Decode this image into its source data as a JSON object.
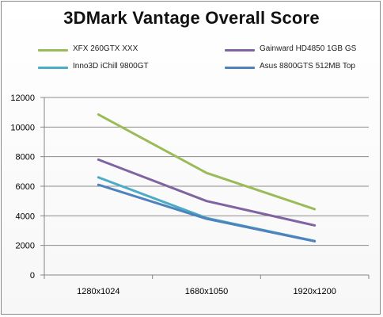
{
  "chart_data": {
    "type": "line",
    "title": "3DMark Vantage Overall Score",
    "categories": [
      "1280x1024",
      "1680x1050",
      "1920x1200"
    ],
    "ylim": [
      0,
      12000
    ],
    "yticks": [
      0,
      2000,
      4000,
      6000,
      8000,
      10000,
      12000
    ],
    "grid": true,
    "legend_position": "top",
    "series": [
      {
        "name": "XFX 260GTX XXX",
        "color": "#9bbb59",
        "values": [
          10850,
          6900,
          4450
        ]
      },
      {
        "name": "Gainward HD4850 1GB GS",
        "color": "#8064a2",
        "values": [
          7800,
          5000,
          3350
        ]
      },
      {
        "name": "Inno3D iChill 9800GT",
        "color": "#4bacc6",
        "values": [
          6600,
          3850,
          2300
        ]
      },
      {
        "name": "Asus 8800GTS 512MB Top",
        "color": "#4f81bd",
        "values": [
          6100,
          3800,
          2280
        ]
      }
    ]
  }
}
